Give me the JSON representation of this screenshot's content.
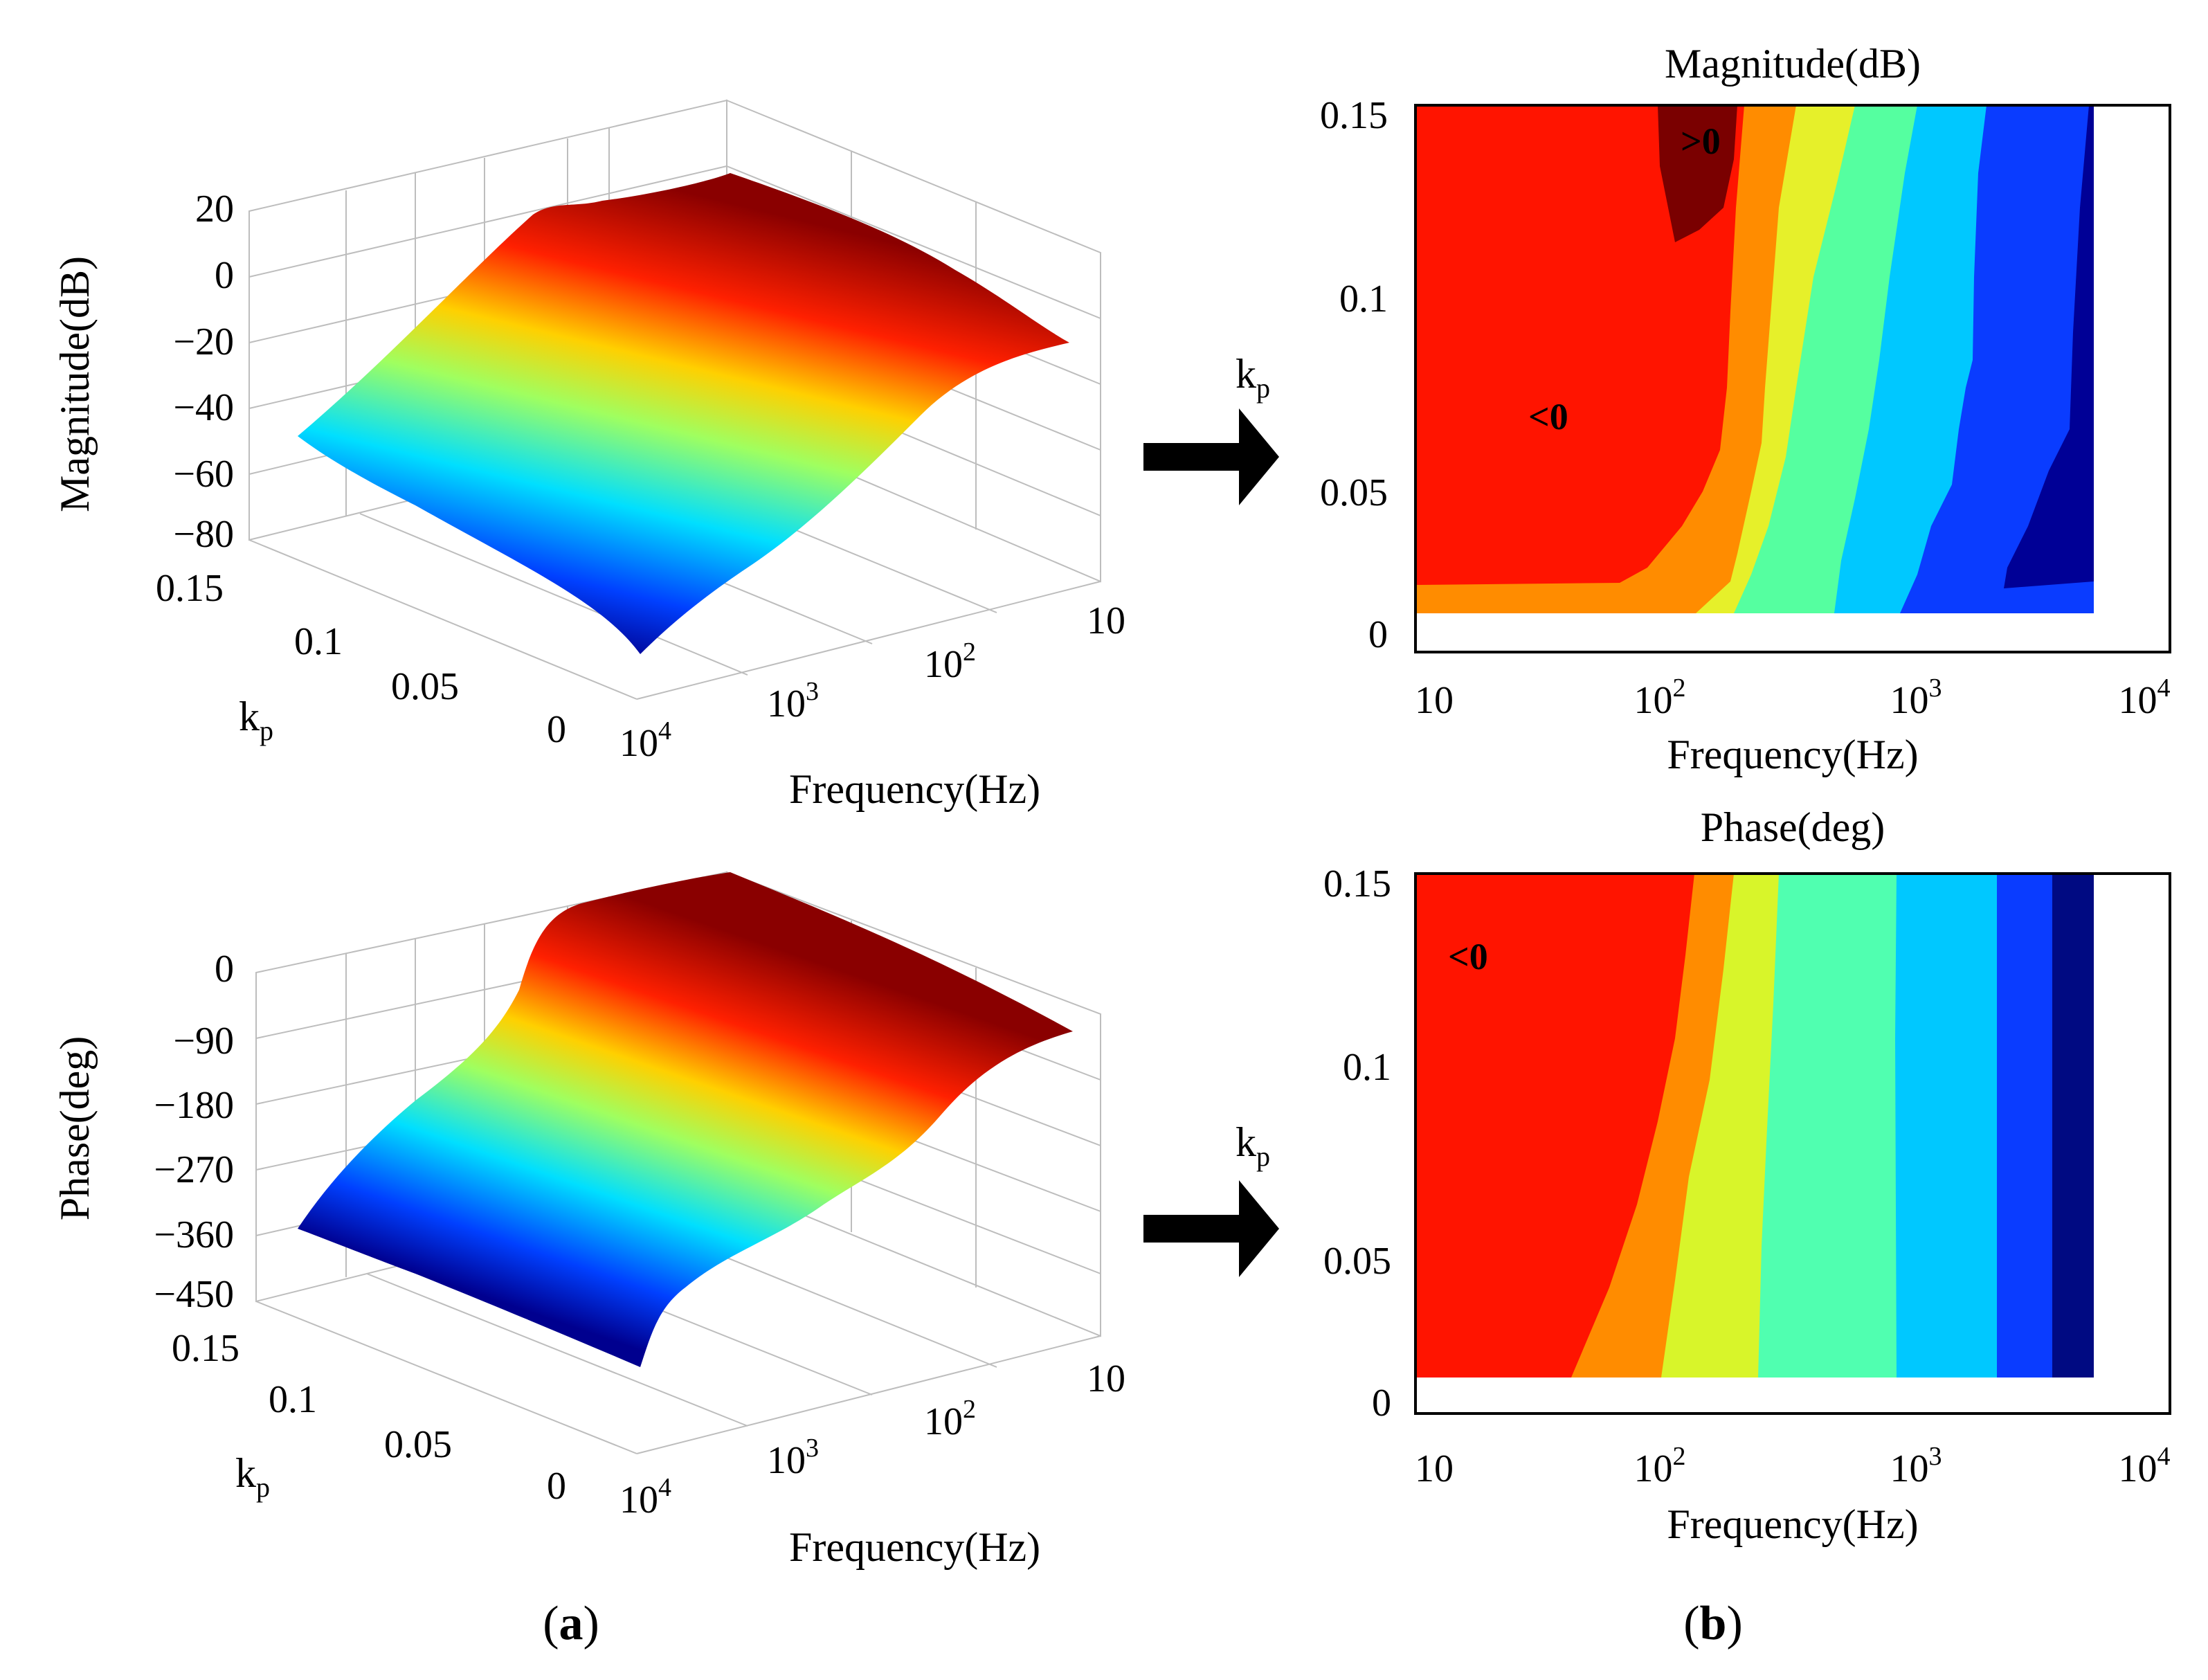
{
  "panels": {
    "a_label": "a",
    "b_label": "b"
  },
  "chart_data": [
    {
      "type": "surface",
      "name": "magnitude-3d",
      "zlabel": "Magnitude(dB)",
      "xlabel": "Frequency(Hz)",
      "ylabel": "k",
      "ylabel_sub": "p",
      "z_ticks": [
        "20",
        "0",
        "−20",
        "−40",
        "−60",
        "−80"
      ],
      "zlim": [
        -80,
        20
      ],
      "kp_ticks": [
        "0.15",
        "0.1",
        "0.05",
        "0"
      ],
      "freq_ticks": [
        {
          "base": "10",
          "exp": ""
        },
        {
          "base": "10",
          "exp": "2"
        },
        {
          "base": "10",
          "exp": "3"
        },
        {
          "base": "10",
          "exp": "4"
        }
      ],
      "colormap": "jet"
    },
    {
      "type": "contour",
      "name": "magnitude-contour",
      "title": "Magnitude(dB)",
      "xlabel": "Frequency(Hz)",
      "ylabel": "k",
      "ylabel_sub": "p",
      "xscale": "log",
      "xlim": [
        10,
        10000
      ],
      "ylim": [
        0,
        0.15
      ],
      "yticks": [
        "0.15",
        "0.1",
        "0.05",
        "0"
      ],
      "xticks": [
        {
          "base": "10",
          "exp": ""
        },
        {
          "base": "10",
          "exp": "2"
        },
        {
          "base": "10",
          "exp": "3"
        },
        {
          "base": "10",
          "exp": "4"
        }
      ],
      "annotations": [
        ">0",
        "<0"
      ],
      "bands": [
        {
          "level": ">0",
          "color": "#7a0000"
        },
        {
          "level": "<0",
          "color": "#ff1400"
        },
        {
          "level": "band-2",
          "color": "#ff8c00"
        },
        {
          "level": "band-3",
          "color": "#e6f02a"
        },
        {
          "level": "band-4",
          "color": "#55ffa0"
        },
        {
          "level": "band-5",
          "color": "#00c8ff"
        },
        {
          "level": "band-6",
          "color": "#0a3cff"
        },
        {
          "level": "band-7",
          "color": "#000096"
        }
      ]
    },
    {
      "type": "surface",
      "name": "phase-3d",
      "zlabel": "Phase(deg)",
      "xlabel": "Frequency(Hz)",
      "ylabel": "k",
      "ylabel_sub": "p",
      "z_ticks": [
        "0",
        "−90",
        "−180",
        "−270",
        "−360",
        "−450"
      ],
      "zlim": [
        -450,
        0
      ],
      "kp_ticks": [
        "0.15",
        "0.1",
        "0.05",
        "0"
      ],
      "freq_ticks": [
        {
          "base": "10",
          "exp": ""
        },
        {
          "base": "10",
          "exp": "2"
        },
        {
          "base": "10",
          "exp": "3"
        },
        {
          "base": "10",
          "exp": "4"
        }
      ],
      "colormap": "jet"
    },
    {
      "type": "contour",
      "name": "phase-contour",
      "title": "Phase(deg)",
      "xlabel": "Frequency(Hz)",
      "ylabel": "k",
      "ylabel_sub": "p",
      "xscale": "log",
      "xlim": [
        10,
        10000
      ],
      "ylim": [
        0,
        0.15
      ],
      "yticks": [
        "0.15",
        "0.1",
        "0.05",
        "0"
      ],
      "xticks": [
        {
          "base": "10",
          "exp": ""
        },
        {
          "base": "10",
          "exp": "2"
        },
        {
          "base": "10",
          "exp": "3"
        },
        {
          "base": "10",
          "exp": "4"
        }
      ],
      "annotations": [
        "<0"
      ],
      "bands": [
        {
          "level": "<0",
          "color": "#ff1400"
        },
        {
          "level": "band-2",
          "color": "#ff8c00"
        },
        {
          "level": "band-3",
          "color": "#d8f52a"
        },
        {
          "level": "band-4",
          "color": "#50ffb0"
        },
        {
          "level": "band-5",
          "color": "#00c8ff"
        },
        {
          "level": "band-6",
          "color": "#0a3cff"
        },
        {
          "level": "band-7",
          "color": "#000a82"
        }
      ]
    }
  ],
  "colors": {
    "arrow": "#000000",
    "frame": "#000000",
    "grid": "#bdbdbd"
  }
}
